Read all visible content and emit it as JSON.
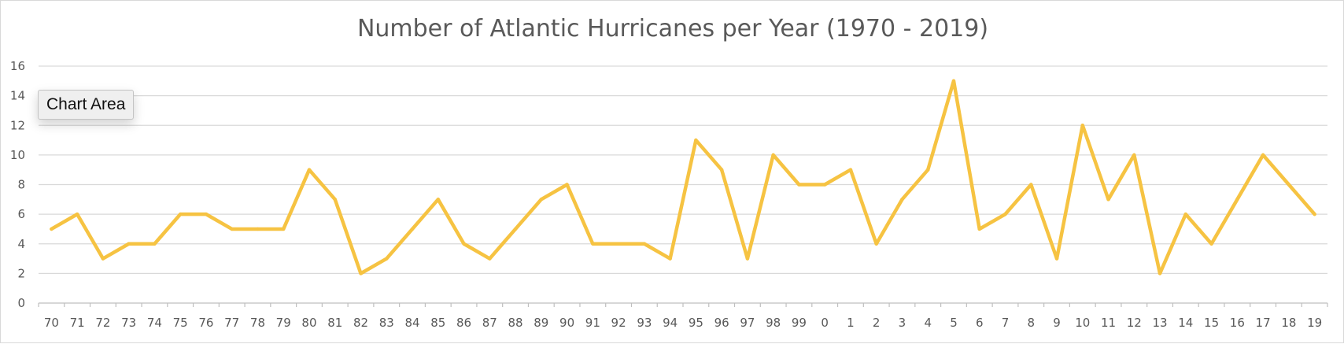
{
  "chart_data": {
    "type": "line",
    "title": "Number of Atlantic Hurricanes per Year (1970 - 2019)",
    "xlabel": "",
    "ylabel": "",
    "categories": [
      "70",
      "71",
      "72",
      "73",
      "74",
      "75",
      "76",
      "77",
      "78",
      "79",
      "80",
      "81",
      "82",
      "83",
      "84",
      "85",
      "86",
      "87",
      "88",
      "89",
      "90",
      "91",
      "92",
      "93",
      "94",
      "95",
      "96",
      "97",
      "98",
      "99",
      "0",
      "1",
      "2",
      "3",
      "4",
      "5",
      "6",
      "7",
      "8",
      "9",
      "10",
      "11",
      "12",
      "13",
      "14",
      "15",
      "16",
      "17",
      "18",
      "19"
    ],
    "series": [
      {
        "values": [
          5,
          6,
          3,
          4,
          4,
          6,
          6,
          5,
          5,
          5,
          9,
          7,
          2,
          3,
          5,
          7,
          4,
          3,
          5,
          7,
          8,
          4,
          4,
          4,
          3,
          11,
          9,
          3,
          10,
          8,
          8,
          9,
          4,
          7,
          9,
          15,
          5,
          6,
          8,
          3,
          12,
          7,
          10,
          2,
          6,
          4,
          7,
          10,
          8,
          6
        ],
        "color": "#f6c342"
      }
    ],
    "ylim": [
      0,
      16
    ],
    "yticks": [
      0,
      2,
      4,
      6,
      8,
      10,
      12,
      14,
      16
    ],
    "grid": true,
    "legend": "none"
  },
  "tooltip": {
    "label": "Chart Area"
  }
}
